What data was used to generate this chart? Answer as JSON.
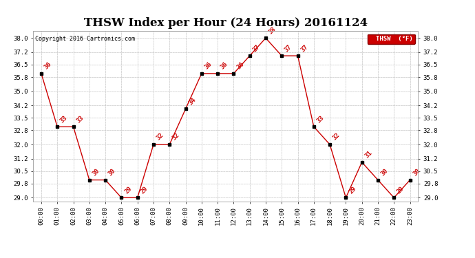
{
  "title": "THSW Index per Hour (24 Hours) 20161124",
  "copyright": "Copyright 2016 Cartronics.com",
  "legend_label": "THSW  (°F)",
  "hours": [
    "00:00",
    "01:00",
    "02:00",
    "03:00",
    "04:00",
    "05:00",
    "06:00",
    "07:00",
    "08:00",
    "09:00",
    "10:00",
    "11:00",
    "12:00",
    "13:00",
    "14:00",
    "15:00",
    "16:00",
    "17:00",
    "18:00",
    "19:00",
    "20:00",
    "21:00",
    "22:00",
    "23:00"
  ],
  "values": [
    36,
    33,
    33,
    30,
    30,
    29,
    29,
    32,
    32,
    34,
    36,
    36,
    36,
    37,
    38,
    37,
    37,
    33,
    32,
    29,
    31,
    30,
    29,
    30
  ],
  "line_color": "#cc0000",
  "marker_color": "#000000",
  "background_color": "#ffffff",
  "grid_color": "#c8c8c8",
  "ylim": [
    28.8,
    38.4
  ],
  "yticks": [
    29.0,
    29.8,
    30.5,
    31.2,
    32.0,
    32.8,
    33.5,
    34.2,
    35.0,
    35.8,
    36.5,
    37.2,
    38.0
  ],
  "title_fontsize": 12,
  "label_fontsize": 6.5,
  "annotation_fontsize": 6.5,
  "legend_bg": "#cc0000",
  "legend_text_color": "#ffffff"
}
